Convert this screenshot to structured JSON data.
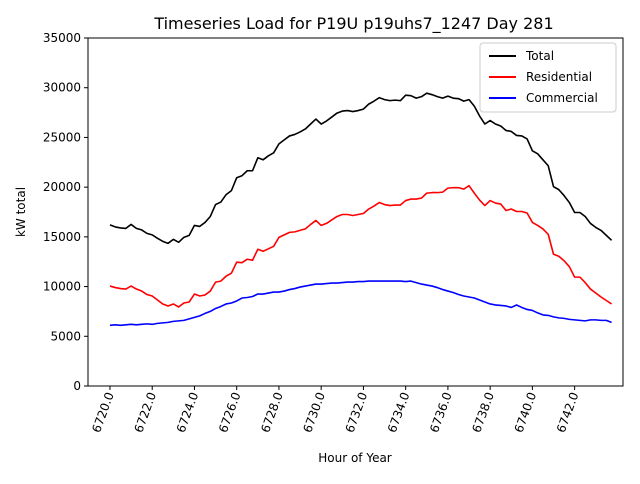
{
  "chart_data": {
    "type": "line",
    "title": "Timeseries Load for P19U p19uhs7_1247  Day 281",
    "xlabel": "Hour of Year",
    "ylabel": "kW total",
    "xlim": [
      6718.96,
      6744.29
    ],
    "ylim": [
      0,
      35000
    ],
    "xticks": [
      6720,
      6722,
      6724,
      6726,
      6728,
      6730,
      6732,
      6734,
      6736,
      6738,
      6740,
      6742
    ],
    "xtick_labels": [
      "6720.0",
      "6722.0",
      "6724.0",
      "6726.0",
      "6728.0",
      "6730.0",
      "6732.0",
      "6734.0",
      "6736.0",
      "6738.0",
      "6740.0",
      "6742.0"
    ],
    "yticks": [
      0,
      5000,
      10000,
      15000,
      20000,
      25000,
      30000,
      35000
    ],
    "ytick_labels": [
      "0",
      "5000",
      "10000",
      "15000",
      "20000",
      "25000",
      "30000",
      "35000"
    ],
    "legend_position": "top-right",
    "x_start": 6720,
    "x_step": 0.25,
    "series": [
      {
        "name": "Total",
        "color": "#000000",
        "values": [
          16200,
          16000,
          15900,
          15850,
          16250,
          15850,
          15700,
          15350,
          15200,
          14850,
          14550,
          14350,
          14750,
          14450,
          14950,
          15150,
          16150,
          16050,
          16450,
          17050,
          18250,
          18500,
          19250,
          19650,
          20950,
          21150,
          21650,
          21650,
          22950,
          22750,
          23150,
          23450,
          24350,
          24750,
          25150,
          25300,
          25550,
          25850,
          26350,
          26850,
          26350,
          26650,
          27050,
          27450,
          27650,
          27700,
          27600,
          27700,
          27850,
          28350,
          28650,
          29000,
          28800,
          28700,
          28750,
          28700,
          29250,
          29200,
          28950,
          29100,
          29450,
          29300,
          29100,
          28950,
          29150,
          28950,
          28900,
          28650,
          28800,
          28150,
          27150,
          26350,
          26700,
          26350,
          26150,
          25700,
          25600,
          25200,
          25150,
          24850,
          23650,
          23350,
          22750,
          22150,
          20050,
          19750,
          19150,
          18450,
          17450,
          17450,
          17050,
          16350,
          15950,
          15650,
          15150,
          14650
        ]
      },
      {
        "name": "Residential",
        "color": "#ff0000",
        "values": [
          10050,
          9900,
          9800,
          9750,
          10050,
          9750,
          9550,
          9200,
          9050,
          8650,
          8250,
          8050,
          8250,
          7950,
          8350,
          8450,
          9250,
          9050,
          9150,
          9550,
          10450,
          10550,
          11050,
          11350,
          12450,
          12400,
          12750,
          12650,
          13750,
          13550,
          13800,
          14050,
          14950,
          15200,
          15450,
          15500,
          15650,
          15800,
          16250,
          16650,
          16150,
          16350,
          16700,
          17050,
          17250,
          17250,
          17150,
          17250,
          17350,
          17800,
          18100,
          18450,
          18250,
          18150,
          18200,
          18200,
          18650,
          18800,
          18800,
          18900,
          19400,
          19450,
          19450,
          19500,
          19900,
          19950,
          19950,
          19800,
          20150,
          19400,
          18700,
          18150,
          18650,
          18400,
          18300,
          17650,
          17800,
          17550,
          17550,
          17400,
          16450,
          16150,
          15800,
          15250,
          13250,
          13050,
          12600,
          12000,
          10950,
          10950,
          10400,
          9750,
          9350,
          8950,
          8600,
          8250
        ]
      },
      {
        "name": "Commercial",
        "color": "#0000ff",
        "values": [
          6100,
          6150,
          6100,
          6150,
          6200,
          6150,
          6200,
          6250,
          6200,
          6300,
          6350,
          6400,
          6500,
          6550,
          6600,
          6750,
          6900,
          7050,
          7300,
          7500,
          7800,
          8000,
          8250,
          8350,
          8550,
          8850,
          8900,
          9000,
          9250,
          9250,
          9350,
          9450,
          9450,
          9550,
          9700,
          9800,
          9950,
          10050,
          10150,
          10250,
          10250,
          10300,
          10350,
          10350,
          10400,
          10450,
          10450,
          10500,
          10500,
          10550,
          10550,
          10550,
          10550,
          10550,
          10550,
          10550,
          10500,
          10550,
          10400,
          10250,
          10150,
          10050,
          9900,
          9700,
          9550,
          9400,
          9200,
          9050,
          8950,
          8850,
          8650,
          8450,
          8250,
          8150,
          8100,
          8050,
          7900,
          8150,
          7900,
          7700,
          7600,
          7350,
          7150,
          7100,
          6950,
          6850,
          6800,
          6700,
          6650,
          6600,
          6550,
          6650,
          6650,
          6600,
          6600,
          6400
        ]
      }
    ]
  }
}
